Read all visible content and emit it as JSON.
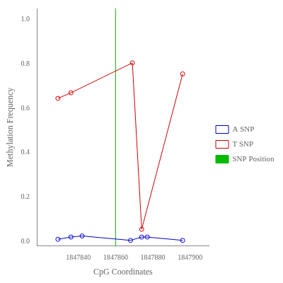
{
  "chart_data": {
    "type": "line",
    "xlabel": "CpG Coordinates",
    "ylabel": "Methylation Frequency",
    "series": [
      {
        "name": "A SNP",
        "color": "#0000cc",
        "marker": "circle",
        "line_style": "solid",
        "x": [
          1847829,
          1847836,
          1847842,
          1847868,
          1847874,
          1847877,
          1847896
        ],
        "values": [
          0.01,
          0.02,
          0.025,
          0.005,
          0.02,
          0.02,
          0.005
        ]
      },
      {
        "name": "T SNP",
        "color": "#cc0000",
        "marker": "circle",
        "line_style": "solid",
        "x": [
          1847829,
          1847836,
          1847869,
          1847874,
          1847896
        ],
        "values": [
          0.645,
          0.67,
          0.805,
          0.055,
          0.755
        ]
      }
    ],
    "annotations": [
      {
        "type": "vline",
        "name": "SNP Position",
        "x": 1847860,
        "color": "#00bb00"
      }
    ],
    "xlim": [
      1847818,
      1847910
    ],
    "ylim": [
      -0.02,
      1.05
    ],
    "xticks": [
      1847840,
      1847860,
      1847880,
      1847900
    ],
    "yticks": [
      {
        "value": 0.0,
        "label": "0.0"
      },
      0.2,
      0.4,
      0.6,
      0.8,
      {
        "value": 1.0,
        "label": "1.0"
      }
    ],
    "grid": false,
    "legend": "center right"
  }
}
